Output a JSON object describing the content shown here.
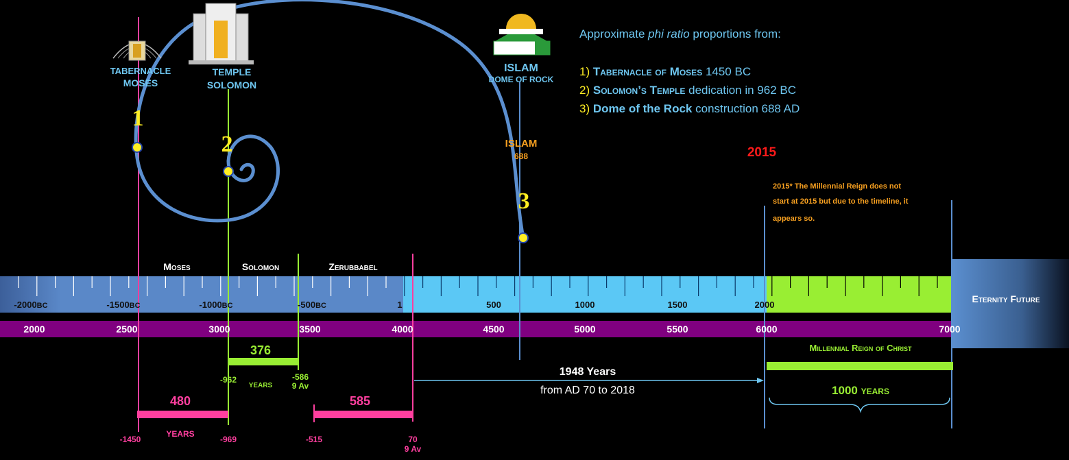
{
  "intro": {
    "prefix": "Approximate ",
    "emphasis": "phi ratio",
    "suffix": " proportions from:"
  },
  "list": [
    {
      "number": "1)",
      "name": "Tabernacle of Moses",
      "detail": "1450 BC"
    },
    {
      "number": "2)",
      "name": "Solomon’s Temple",
      "detail": "dedication in 962 BC"
    },
    {
      "number": "3)",
      "name": "Dome of the Rock",
      "detail": "construction 688 AD"
    }
  ],
  "icons": [
    {
      "line1": "TABERNACLE",
      "line2": "MOSES"
    },
    {
      "line1": "TEMPLE",
      "line2": "SOLOMON"
    },
    {
      "line1": "ISLAM",
      "line2": "DOME OF ROCK"
    }
  ],
  "markers": [
    "1",
    "2",
    "3"
  ],
  "islam_label": {
    "name": "ISLAM",
    "year": "688"
  },
  "year_2015": "2015",
  "note": [
    "2015* The Millennial Reign does not",
    "start at 2015 but due to the timeline, it",
    "appears so."
  ],
  "eras": [
    "Moses",
    "Solomon",
    "Zerubbabel"
  ],
  "timeline_labels": [
    {
      "year": "-2000",
      "era": "BC"
    },
    {
      "year": "-1500",
      "era": "BC"
    },
    {
      "year": "-1000",
      "era": "BC"
    },
    {
      "year": "-500",
      "era": "BC"
    },
    {
      "year": "1"
    },
    {
      "year": "500"
    },
    {
      "year": "1000"
    },
    {
      "year": "1500"
    },
    {
      "year": "2000"
    }
  ],
  "anno_mundi": [
    "2000",
    "2500",
    "3000",
    "3500",
    "4000",
    "4500",
    "5000",
    "5500",
    "6000",
    "7000"
  ],
  "eternity": "Eternity Future",
  "spans": {
    "solomon": {
      "years": "376",
      "unit": "YEARS",
      "start": "-962",
      "end": "-586",
      "end_note": "9 Av"
    },
    "moses": {
      "years": "480",
      "unit": "YEARS",
      "start": "-1450",
      "end": "-969"
    },
    "exile": {
      "years": "585",
      "start": "-515",
      "end": "70",
      "end_note": "9 Av"
    }
  },
  "diaspora": {
    "title": "1948 Years",
    "subtitle": "from AD 70 to 2018"
  },
  "millennium": {
    "title": "Millennial Reign of Christ",
    "years": "1000",
    "unit": "years"
  }
}
